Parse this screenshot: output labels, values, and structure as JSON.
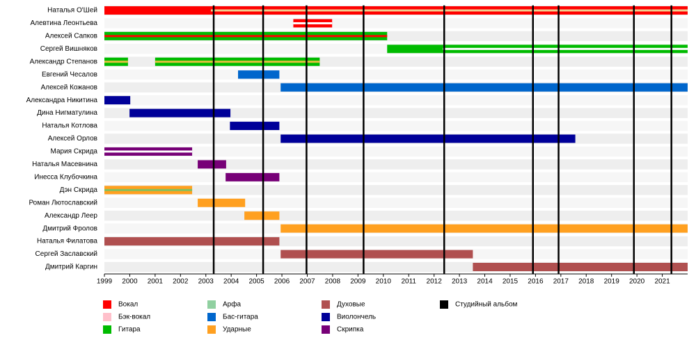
{
  "chart_data": {
    "type": "timeline",
    "categories": [
      {
        "name": "Наталья О'Шей",
        "periods": [
          {
            "start": 1999,
            "end": 2003.2,
            "color": "#ff0000"
          },
          {
            "start": 2003.2,
            "end": 2022,
            "color": "#ff0000",
            "stripe": "#f0d090"
          }
        ]
      },
      {
        "name": "Алевтина Леонтьева",
        "periods": [
          {
            "start": 2006.45,
            "end": 2007.98,
            "color": "#ff0000",
            "stripe": "#ffffff"
          }
        ]
      },
      {
        "name": "Алексей Сапков",
        "periods": [
          {
            "start": 1999,
            "end": 2010.15,
            "color": "#00bb00",
            "stripe": "#ff0000"
          }
        ]
      },
      {
        "name": "Сергей Вишняков",
        "periods": [
          {
            "start": 2010.15,
            "end": 2012.35,
            "color": "#00bb00"
          },
          {
            "start": 2012.35,
            "end": 2022,
            "color": "#00bb00",
            "stripe": "#ffffff"
          }
        ]
      },
      {
        "name": "Александр Степанов",
        "periods": [
          {
            "start": 1999,
            "end": 1999.93,
            "color": "#00bb00",
            "stripe": "#e8c040"
          },
          {
            "start": 2001,
            "end": 2007.49,
            "color": "#00bb00",
            "stripe": "#e8c040"
          }
        ]
      },
      {
        "name": "Евгений Чесалов",
        "periods": [
          {
            "start": 2004.27,
            "end": 2005.9,
            "color": "#0066cc"
          }
        ]
      },
      {
        "name": "Алексей Кожанов",
        "periods": [
          {
            "start": 2005.95,
            "end": 2022,
            "color": "#0066cc"
          }
        ]
      },
      {
        "name": "Александра Никитина",
        "periods": [
          {
            "start": 1999,
            "end": 2000.02,
            "color": "#000099"
          }
        ]
      },
      {
        "name": "Дина Нигматулина",
        "periods": [
          {
            "start": 1999.99,
            "end": 2003.97,
            "color": "#000099"
          }
        ]
      },
      {
        "name": "Наталья Котлова",
        "periods": [
          {
            "start": 2003.95,
            "end": 2005.9,
            "color": "#000099"
          }
        ]
      },
      {
        "name": "Алексей Орлов",
        "periods": [
          {
            "start": 2005.95,
            "end": 2017.57,
            "color": "#000099"
          }
        ]
      },
      {
        "name": "Мария Скрида",
        "periods": [
          {
            "start": 1999,
            "end": 2002.46,
            "color": "#770077",
            "stripe": "#ffffff"
          }
        ]
      },
      {
        "name": "Наталья Масевнина",
        "periods": [
          {
            "start": 2002.68,
            "end": 2003.8,
            "color": "#770077"
          }
        ]
      },
      {
        "name": "Инесса Клубочкина",
        "periods": [
          {
            "start": 2003.78,
            "end": 2005.9,
            "color": "#770077"
          }
        ]
      },
      {
        "name": "Дэн Скрида",
        "periods": [
          {
            "start": 1999,
            "end": 2002.46,
            "color": "#ffa020",
            "stripe": "#80c060"
          }
        ]
      },
      {
        "name": "Роман Лютославский",
        "periods": [
          {
            "start": 2002.68,
            "end": 2004.55,
            "color": "#ffa020"
          }
        ]
      },
      {
        "name": "Александр Леер",
        "periods": [
          {
            "start": 2004.52,
            "end": 2005.9,
            "color": "#ffa020"
          }
        ]
      },
      {
        "name": "Дмитрий Фролов",
        "periods": [
          {
            "start": 2005.95,
            "end": 2022,
            "color": "#ffa020"
          }
        ]
      },
      {
        "name": "Наталья Филатова",
        "periods": [
          {
            "start": 1999,
            "end": 2005.9,
            "color": "#b05050"
          }
        ]
      },
      {
        "name": "Сергей Заславский",
        "periods": [
          {
            "start": 2005.95,
            "end": 2013.53,
            "color": "#b05050"
          }
        ]
      },
      {
        "name": "Дмитрий Каргин",
        "periods": [
          {
            "start": 2013.53,
            "end": 2022,
            "color": "#b05050"
          }
        ]
      }
    ],
    "albums": [
      2003.31,
      2005.26,
      2006.97,
      2009.22,
      2012.4,
      2015.9,
      2016.91,
      2019.88,
      2021.36
    ],
    "album_color": "#000000",
    "xlim": [
      1999,
      2022
    ],
    "xticks": [
      1999,
      2000,
      2001,
      2002,
      2003,
      2004,
      2005,
      2006,
      2007,
      2008,
      2009,
      2010,
      2011,
      2012,
      2013,
      2014,
      2015,
      2016,
      2017,
      2018,
      2019,
      2020,
      2021
    ],
    "legend": [
      {
        "name": "Вокал",
        "color": "#ff0000"
      },
      {
        "name": "Бэк-вокал",
        "color": "#ffc0cb"
      },
      {
        "name": "Гитара",
        "color": "#00bb00"
      },
      {
        "name": "Арфа",
        "color": "#90d0a0"
      },
      {
        "name": "Бас-гитара",
        "color": "#0066cc"
      },
      {
        "name": "Ударные",
        "color": "#ffa020"
      },
      {
        "name": "Духовые",
        "color": "#b05050"
      },
      {
        "name": "Виолончель",
        "color": "#000099"
      },
      {
        "name": "Скрипка",
        "color": "#770077"
      },
      {
        "name": "Студийный альбом",
        "color": "#000000"
      }
    ]
  }
}
